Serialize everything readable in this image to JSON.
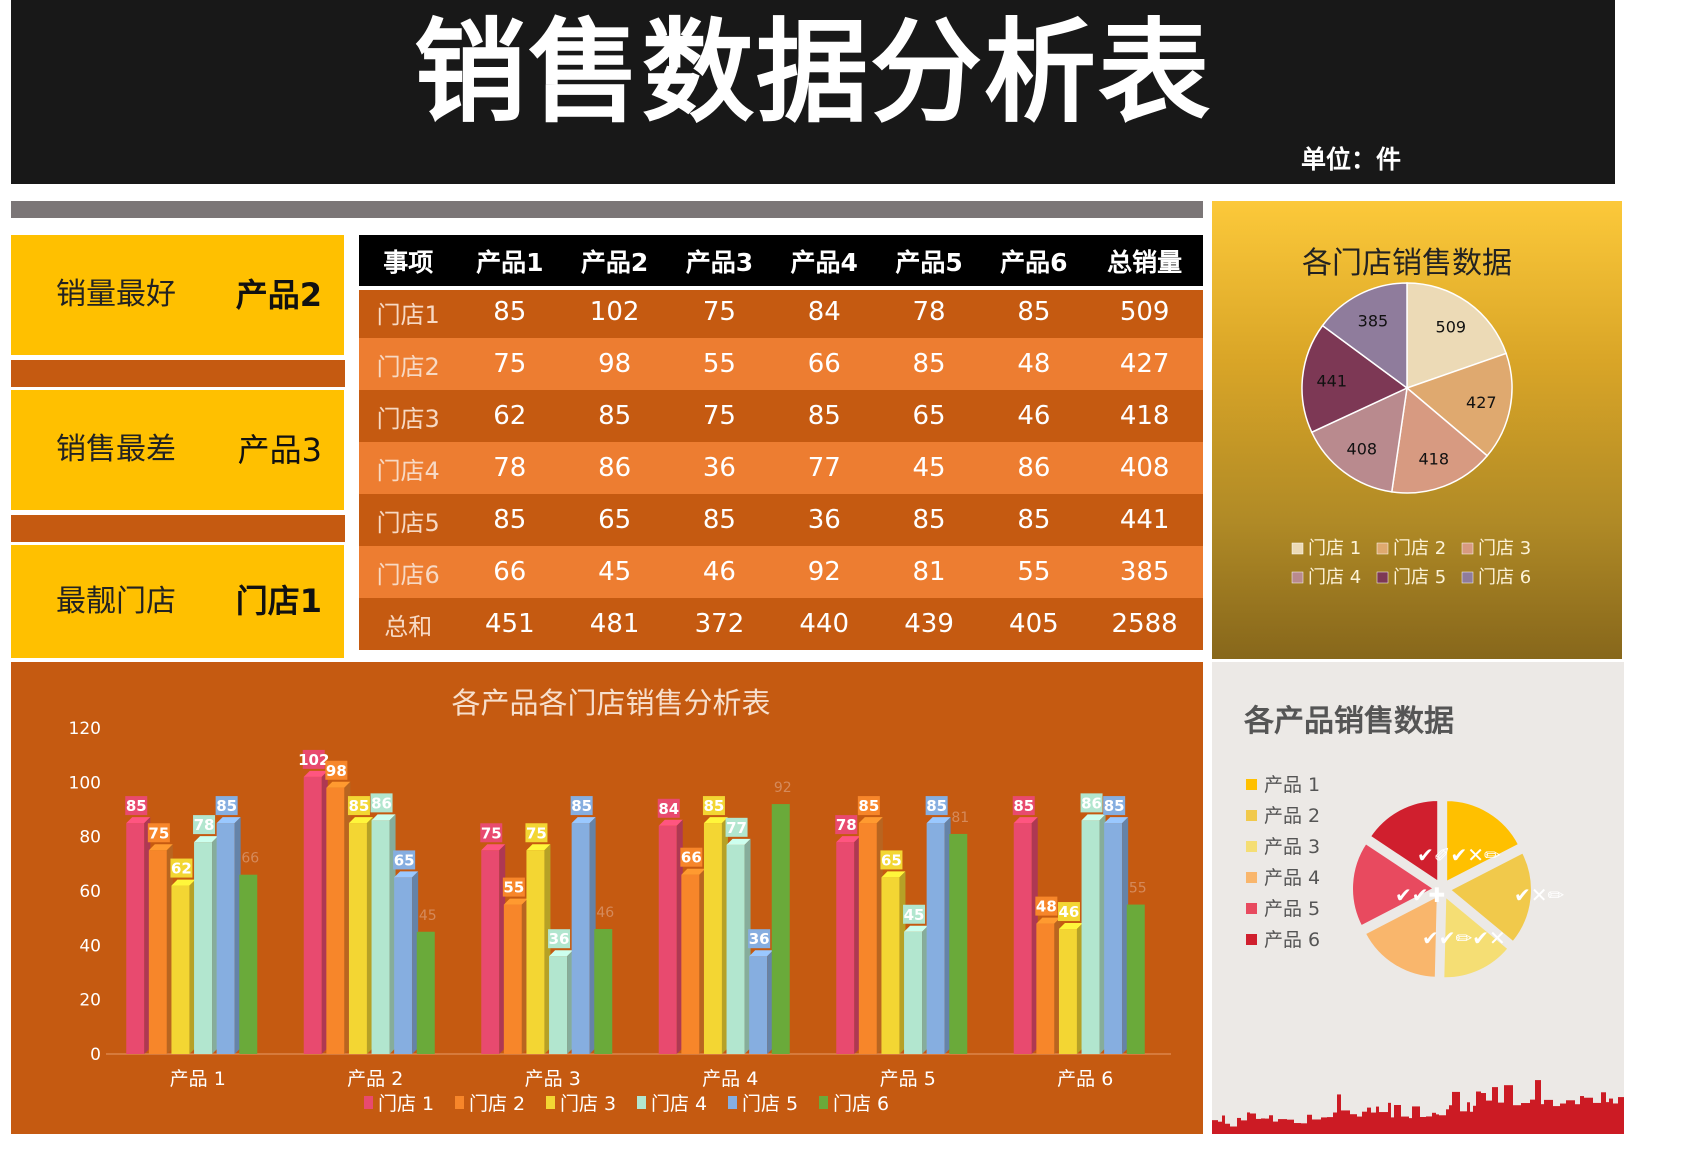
{
  "header": {
    "title": "销售数据分析表",
    "unit": "单位：件"
  },
  "summary": [
    {
      "label": "销量最好",
      "value": "产品2"
    },
    {
      "label": "销售最差",
      "value": "产品3"
    },
    {
      "label": "最靓门店",
      "value": "门店1"
    }
  ],
  "table": {
    "headers": [
      "事项",
      "产品1",
      "产品2",
      "产品3",
      "产品4",
      "产品5",
      "产品6",
      "总销量"
    ],
    "rows": [
      {
        "label": "门店1",
        "values": [
          "85",
          "102",
          "75",
          "84",
          "78",
          "85",
          "509"
        ]
      },
      {
        "label": "门店2",
        "values": [
          "75",
          "98",
          "55",
          "66",
          "85",
          "48",
          "427"
        ]
      },
      {
        "label": "门店3",
        "values": [
          "62",
          "85",
          "75",
          "85",
          "65",
          "46",
          "418"
        ]
      },
      {
        "label": "门店4",
        "values": [
          "78",
          "86",
          "36",
          "77",
          "45",
          "86",
          "408"
        ]
      },
      {
        "label": "门店5",
        "values": [
          "85",
          "65",
          "85",
          "36",
          "85",
          "85",
          "441"
        ]
      },
      {
        "label": "门店6",
        "values": [
          "66",
          "45",
          "46",
          "92",
          "81",
          "55",
          "385"
        ]
      },
      {
        "label": "总和",
        "values": [
          "451",
          "481",
          "372",
          "440",
          "439",
          "405",
          "2588"
        ]
      }
    ]
  },
  "chart_data": [
    {
      "type": "pie",
      "title": "各门店销售数据",
      "categories": [
        "门店 1",
        "门店 2",
        "门店 3",
        "门店 4",
        "门店 5",
        "门店 6"
      ],
      "values": [
        509,
        427,
        418,
        408,
        441,
        385
      ],
      "colors": [
        "#ecdab6",
        "#dfa96f",
        "#d79a81",
        "#b98a8e",
        "#7d3855",
        "#8f7c9c"
      ],
      "legend": "bottom"
    },
    {
      "type": "bar",
      "title": "各产品各门店销售分析表",
      "categories": [
        "产品 1",
        "产品 2",
        "产品 3",
        "产品 4",
        "产品 5",
        "产品 6"
      ],
      "series": [
        {
          "name": "门店 1",
          "color": "#e84a6f",
          "values": [
            85,
            102,
            75,
            84,
            78,
            85
          ]
        },
        {
          "name": "门店 2",
          "color": "#f7862a",
          "values": [
            75,
            98,
            55,
            66,
            85,
            48
          ]
        },
        {
          "name": "门店 3",
          "color": "#f3d633",
          "values": [
            62,
            85,
            75,
            85,
            65,
            46
          ]
        },
        {
          "name": "门店 4",
          "color": "#b2e6cf",
          "values": [
            78,
            86,
            36,
            77,
            45,
            86
          ]
        },
        {
          "name": "门店 5",
          "color": "#86aee0",
          "values": [
            85,
            65,
            85,
            36,
            85,
            85
          ]
        },
        {
          "name": "门店 6",
          "color": "#6aaa3a",
          "values": [
            66,
            45,
            46,
            92,
            81,
            55
          ]
        }
      ],
      "ylim": [
        0,
        120
      ],
      "yticks": [
        0,
        20,
        40,
        60,
        80,
        100,
        120
      ],
      "grid": false,
      "legend": "bottom"
    },
    {
      "type": "pie",
      "title": "各产品销售数据",
      "categories": [
        "产品 1",
        "产品 2",
        "产品 3",
        "产品 4",
        "产品 5",
        "产品 6"
      ],
      "values": [
        451,
        481,
        372,
        440,
        439,
        405
      ],
      "colors": [
        "#ffc000",
        "#f1c94b",
        "#f5de74",
        "#f9b66c",
        "#e84a5f",
        "#d01f2e"
      ],
      "legend": "left"
    }
  ]
}
